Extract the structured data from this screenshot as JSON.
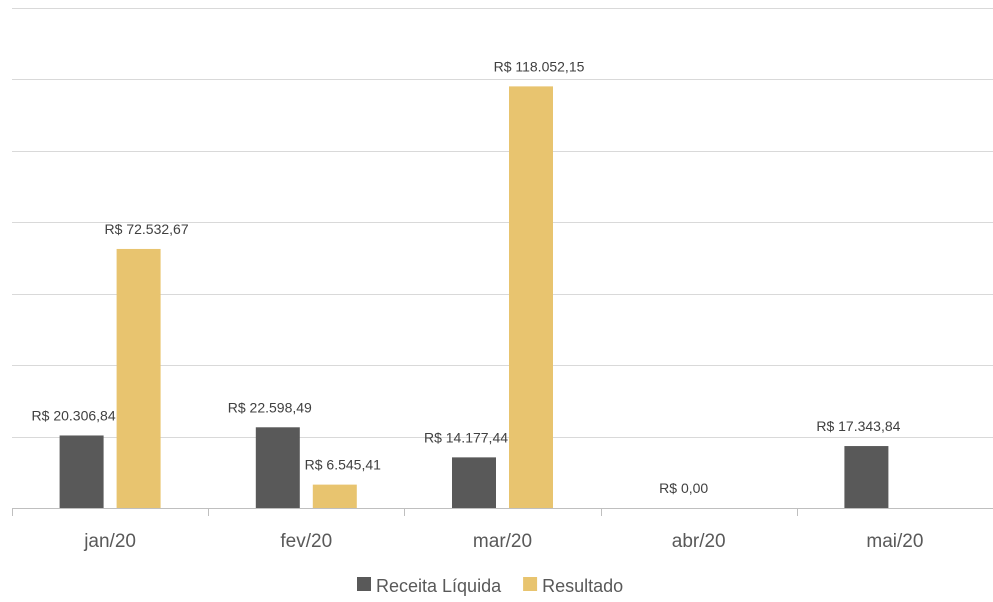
{
  "chart_data": {
    "type": "bar",
    "categories": [
      "jan/20",
      "fev/20",
      "mar/20",
      "abr/20",
      "mai/20"
    ],
    "series": [
      {
        "name": "Receita Líquida",
        "color": "#595959",
        "values": [
          20306.84,
          22598.49,
          14177.44,
          0,
          17343.84
        ],
        "labels": [
          "R$ 20.306,84",
          "R$ 22.598,49",
          "R$ 14.177,44",
          "R$ 0,00",
          "R$ 17.343,84"
        ]
      },
      {
        "name": "Resultado",
        "color": "#e8c46f",
        "values": [
          72532.67,
          6545.41,
          118052.15,
          null,
          null
        ],
        "labels": [
          "R$ 72.532,67",
          "R$ 6.545,41",
          "R$ 118.052,15",
          "",
          ""
        ]
      }
    ],
    "ylim": [
      0,
      140000
    ],
    "y_grid_step": 20000,
    "grid": true,
    "y_tick_labels_visible": false,
    "legend_position": "bottom"
  }
}
